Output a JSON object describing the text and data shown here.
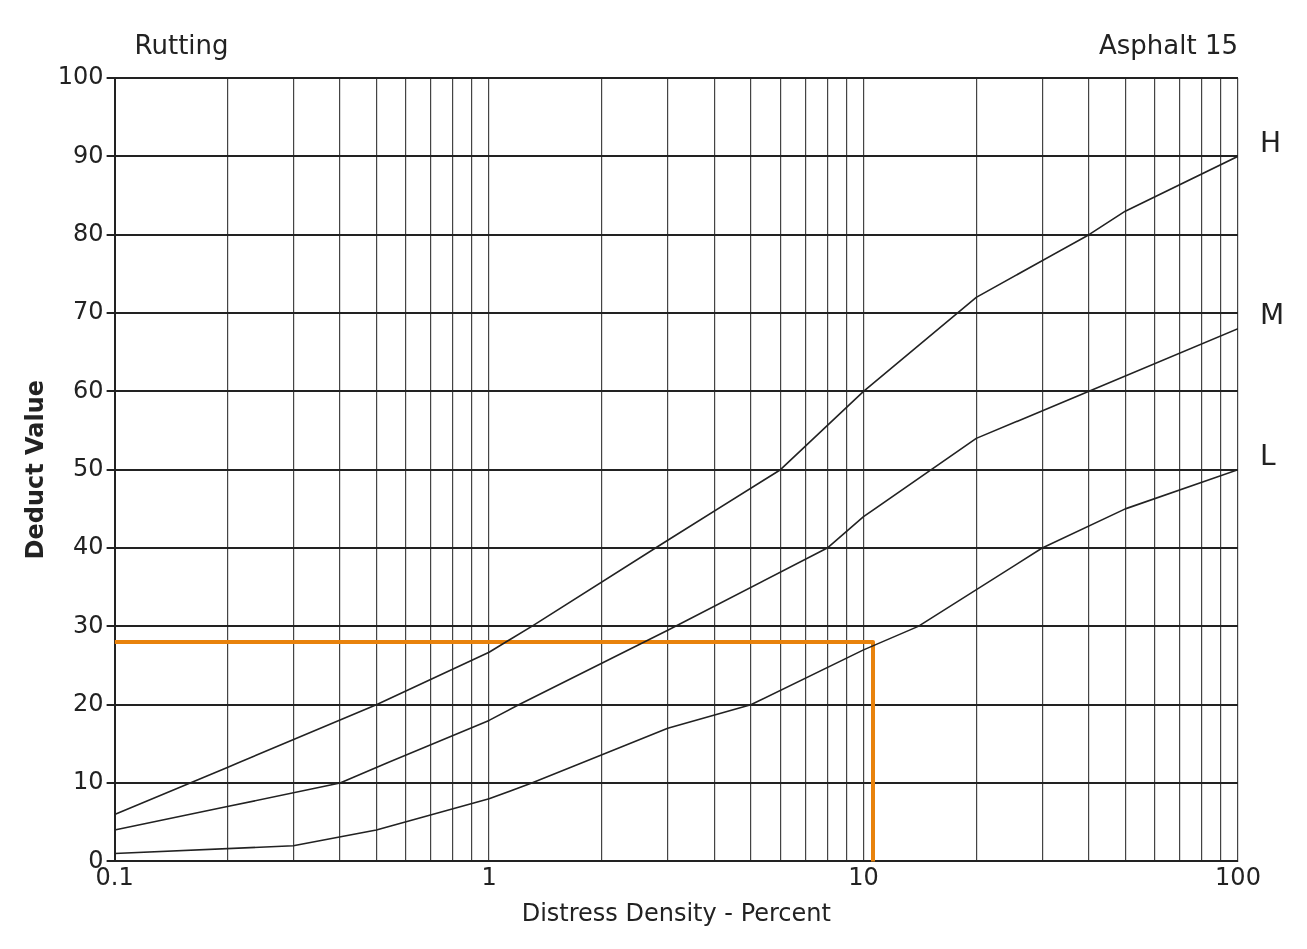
{
  "chart_data": {
    "type": "line",
    "title": "Rutting",
    "subtitle": "Asphalt 15",
    "xlabel": "Distress Density - Percent",
    "ylabel": "Deduct Value",
    "log": "x",
    "grid": true,
    "marker": "none",
    "legend": false,
    "xlim": [
      0.1,
      100
    ],
    "ylim": [
      0,
      100
    ],
    "xticks": [
      0.1,
      {
        "value": 0.2,
        "label": null
      },
      {
        "value": 0.3,
        "label": null
      },
      {
        "value": 0.4,
        "label": null
      },
      {
        "value": 0.5,
        "label": null
      },
      {
        "value": 0.6,
        "label": null
      },
      {
        "value": 0.7,
        "label": null
      },
      {
        "value": 0.8,
        "label": null
      },
      {
        "value": 0.9,
        "label": null
      },
      1,
      {
        "value": 2,
        "label": null
      },
      {
        "value": 3,
        "label": null
      },
      {
        "value": 4,
        "label": null
      },
      {
        "value": 5,
        "label": null
      },
      {
        "value": 6,
        "label": null
      },
      {
        "value": 7,
        "label": null
      },
      {
        "value": 8,
        "label": null
      },
      {
        "value": 9,
        "label": null
      },
      10,
      {
        "value": 20,
        "label": null
      },
      {
        "value": 30,
        "label": null
      },
      {
        "value": 40,
        "label": null
      },
      {
        "value": 50,
        "label": null
      },
      {
        "value": 60,
        "label": null
      },
      {
        "value": 70,
        "label": null
      },
      {
        "value": 80,
        "label": null
      },
      {
        "value": 90,
        "label": null
      },
      100
    ],
    "yticks": [
      0,
      10,
      20,
      30,
      40,
      50,
      60,
      70,
      80,
      90,
      100
    ],
    "series": [
      {
        "name": "H",
        "color": "#222222",
        "x": [
          0.1,
          0.2,
          0.5,
          1,
          1.3,
          3,
          6,
          10,
          20,
          40,
          50,
          100
        ],
        "values": [
          6,
          12,
          20,
          26.7,
          30,
          41,
          50,
          60,
          72,
          80,
          83,
          90
        ]
      },
      {
        "name": "M",
        "color": "#222222",
        "x": [
          0.1,
          0.2,
          0.4,
          0.5,
          1,
          1.2,
          3,
          8,
          10,
          20,
          40,
          100
        ],
        "values": [
          4,
          7,
          10,
          12,
          18,
          20,
          29.5,
          40,
          44,
          54,
          60,
          68
        ]
      },
      {
        "name": "L",
        "color": "#222222",
        "x": [
          0.1,
          0.3,
          0.5,
          1,
          1.3,
          3,
          5,
          10,
          14,
          30,
          50,
          100
        ],
        "values": [
          1,
          2,
          4,
          8,
          10,
          17,
          20,
          27,
          30,
          40,
          45,
          50
        ]
      },
      {
        "color": "#e8820c",
        "x": [
          0.1,
          10.6,
          10.6
        ],
        "values": [
          28,
          28,
          0
        ]
      }
    ]
  }
}
